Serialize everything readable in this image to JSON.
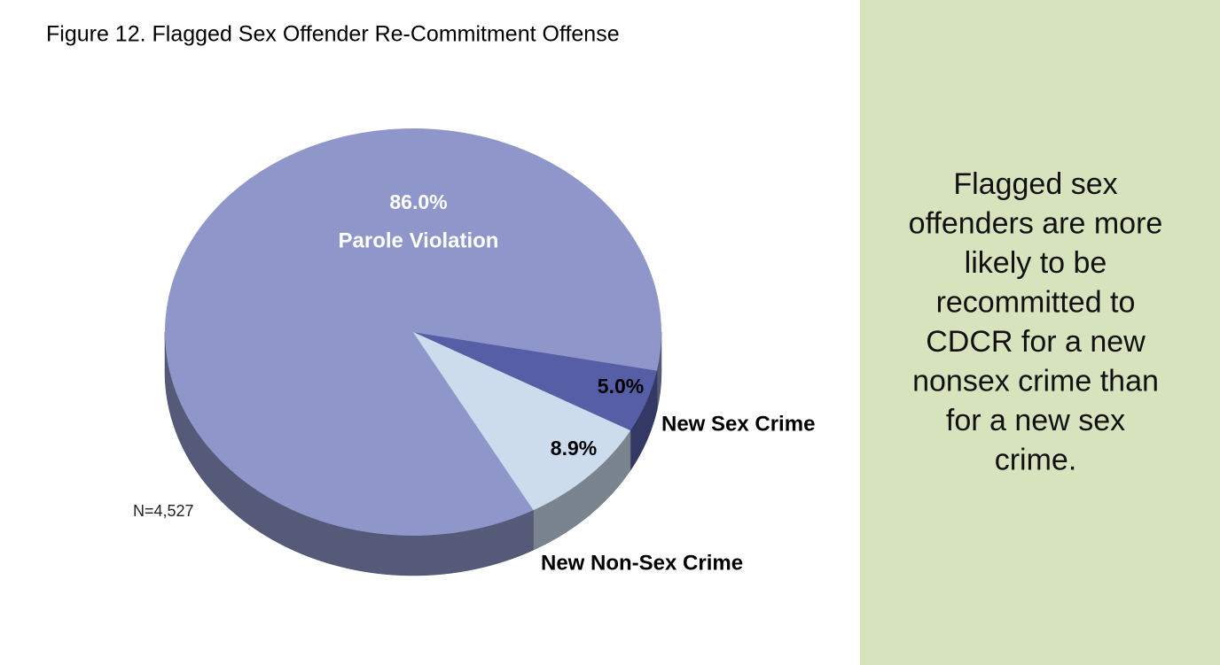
{
  "chart_data": {
    "type": "pie",
    "title": "Figure 12.  Flagged Sex Offender Re-Commitment Offense",
    "categories": [
      "Parole Violation",
      "New Sex Crime",
      "New Non-Sex Crime"
    ],
    "values": [
      86.0,
      5.0,
      8.9
    ],
    "value_labels": [
      "86.0%",
      "5.0%",
      "8.9%"
    ],
    "colors": [
      "#8f96c9",
      "#565ea6",
      "#ccdcec"
    ],
    "annotation": "N=4,527"
  },
  "panel": {
    "lines": [
      "Flagged sex",
      "offenders are more",
      "likely to be",
      "recommitted to",
      "CDCR for a new",
      "nonsex crime than",
      "for a new sex",
      "crime."
    ]
  }
}
